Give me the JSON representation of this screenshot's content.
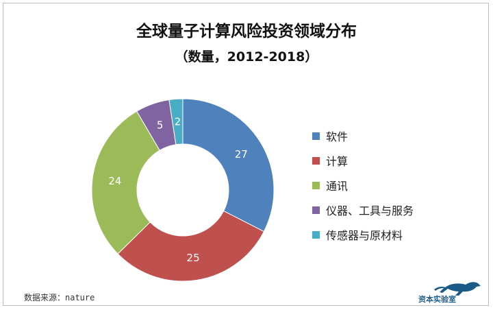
{
  "chart_data": {
    "type": "pie",
    "title": "全球量子计算风险投资领域分布",
    "subtitle": "（数量，2012-2018）",
    "categories": [
      "软件",
      "计算",
      "通讯",
      "仪器、工具与服务",
      "传感器与原材料"
    ],
    "values": [
      27,
      25,
      24,
      5,
      2
    ],
    "colors": [
      "#4f81bd",
      "#c0504d",
      "#9bbb59",
      "#8064a2",
      "#4bacc6"
    ],
    "donut": true,
    "legend_position": "right"
  },
  "source": "数据来源：nature",
  "watermark": "资本实验室",
  "watermark_icon": "cheetah-logo-icon"
}
